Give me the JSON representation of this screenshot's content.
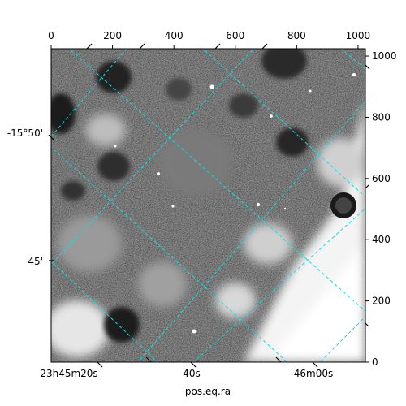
{
  "chart_data": {
    "type": "heatmap",
    "image_description_colormap": "gray",
    "colors": {
      "grid": "#00e5e5",
      "frame": "#000000",
      "background": "#ffffff"
    },
    "pixel_axes": {
      "x_ticks": [
        0,
        200,
        400,
        600,
        800,
        1000
      ],
      "x_tick_labels": [
        "0",
        "200",
        "400",
        "600",
        "800",
        "1000"
      ],
      "x_range": [
        0,
        1024
      ],
      "y_ticks": [
        0,
        200,
        400,
        600,
        800,
        1000
      ],
      "y_tick_labels": [
        "0",
        "200",
        "400",
        "600",
        "800",
        "1000"
      ],
      "y_range": [
        0,
        1024
      ]
    },
    "world_axes": {
      "ra_ticks": [
        "23h45m20s",
        "40s",
        "46m00s"
      ],
      "dec_ticks": [
        "-15°50'",
        "45'"
      ],
      "xlabel": "pos.eq.ra"
    },
    "grid": "on"
  }
}
